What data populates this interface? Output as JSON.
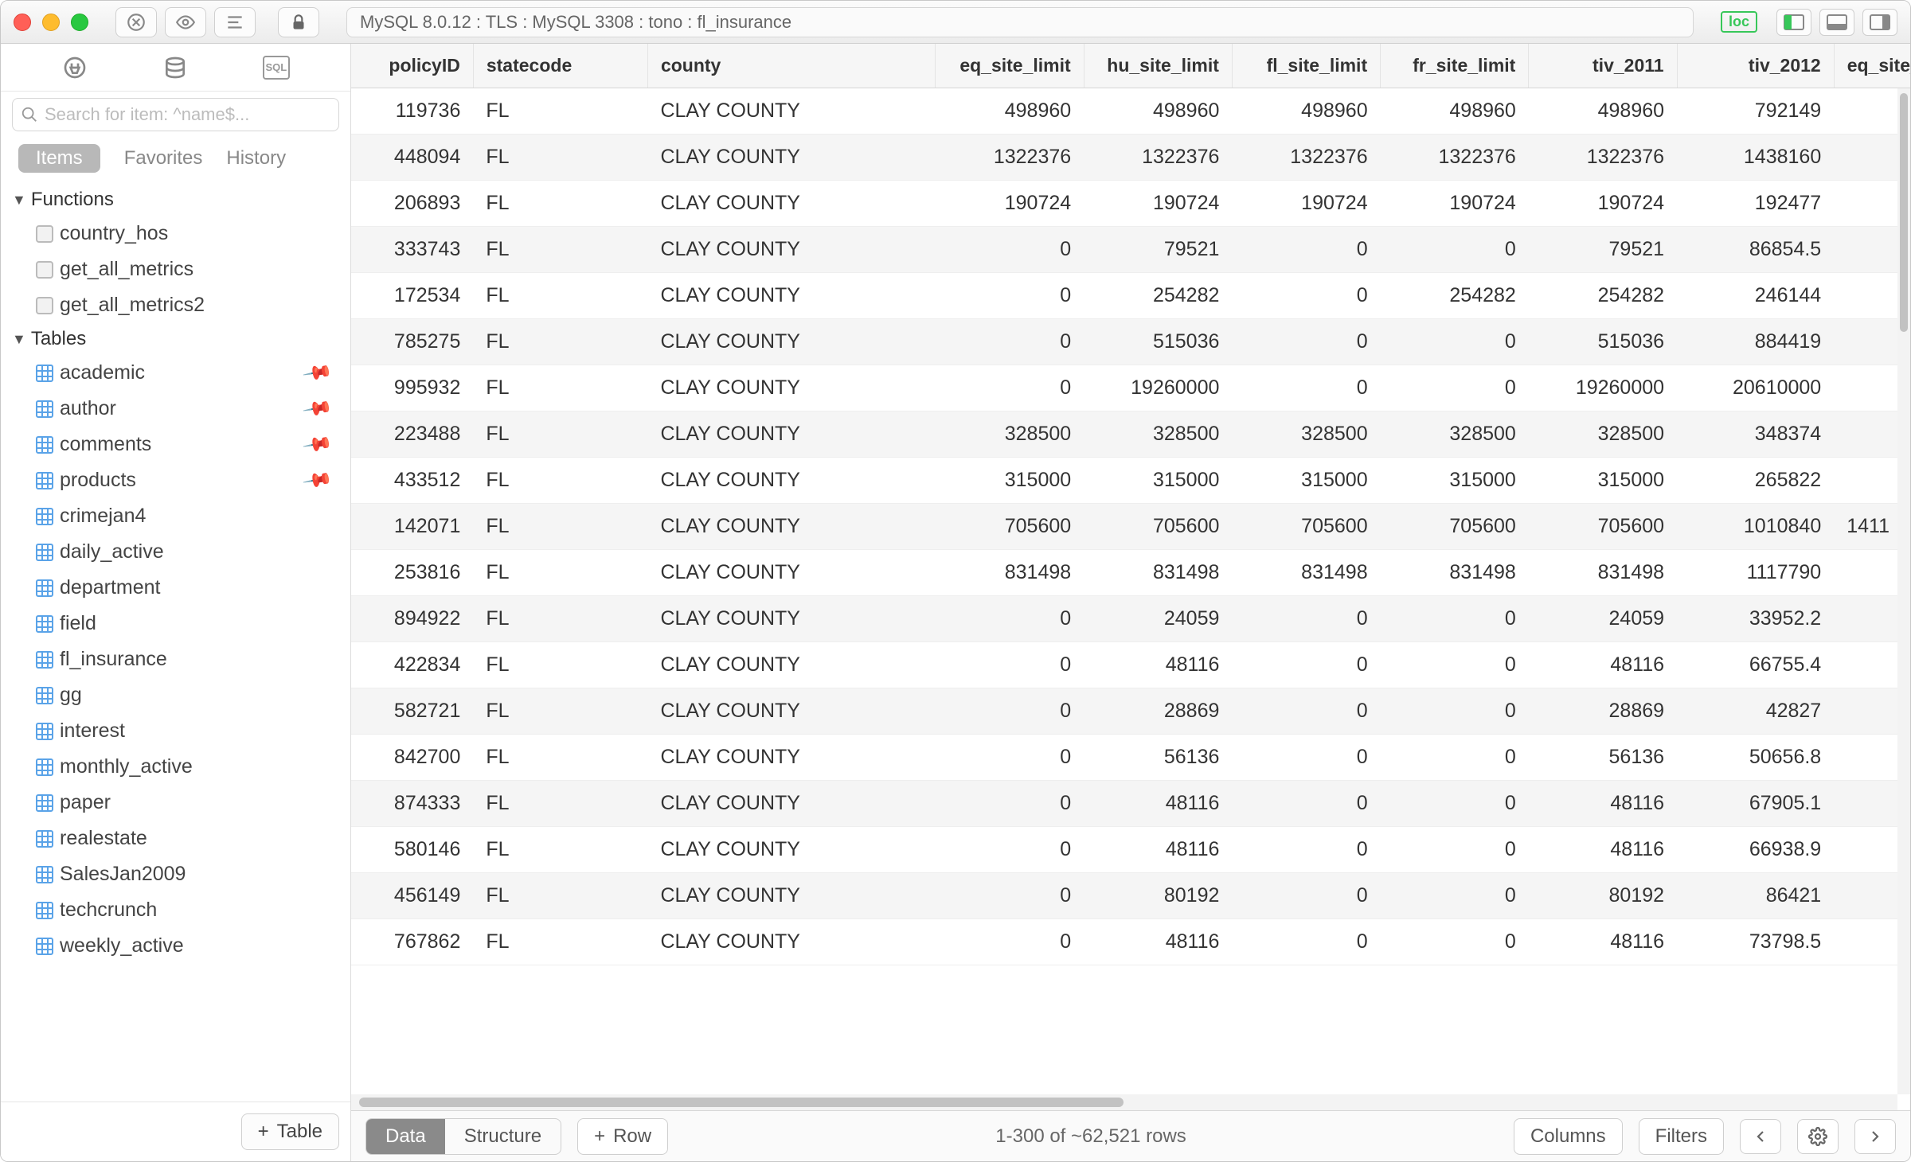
{
  "titlebar": {
    "connection": "MySQL 8.0.12 : TLS : MySQL 3308 : tono : fl_insurance",
    "loc_badge": "loc"
  },
  "sidebar": {
    "search_placeholder": "Search for item: ^name$...",
    "tabs": {
      "items": "Items",
      "favorites": "Favorites",
      "history": "History"
    },
    "sections": {
      "functions": {
        "label": "Functions",
        "items": [
          "country_hos",
          "get_all_metrics",
          "get_all_metrics2"
        ]
      },
      "tables": {
        "label": "Tables",
        "items": [
          {
            "name": "academic",
            "pinned": true
          },
          {
            "name": "author",
            "pinned": true
          },
          {
            "name": "comments",
            "pinned": true
          },
          {
            "name": "products",
            "pinned": true
          },
          {
            "name": "crimejan4",
            "pinned": false
          },
          {
            "name": "daily_active",
            "pinned": false
          },
          {
            "name": "department",
            "pinned": false
          },
          {
            "name": "field",
            "pinned": false
          },
          {
            "name": "fl_insurance",
            "pinned": false
          },
          {
            "name": "gg",
            "pinned": false
          },
          {
            "name": "interest",
            "pinned": false
          },
          {
            "name": "monthly_active",
            "pinned": false
          },
          {
            "name": "paper",
            "pinned": false
          },
          {
            "name": "realestate",
            "pinned": false
          },
          {
            "name": "SalesJan2009",
            "pinned": false
          },
          {
            "name": "techcrunch",
            "pinned": false
          },
          {
            "name": "weekly_active",
            "pinned": false
          }
        ]
      }
    },
    "add_table": "Table"
  },
  "grid": {
    "columns": [
      "policyID",
      "statecode",
      "county",
      "eq_site_limit",
      "hu_site_limit",
      "fl_site_limit",
      "fr_site_limit",
      "tiv_2011",
      "tiv_2012",
      "eq_site_deductible"
    ],
    "rows": [
      [
        "119736",
        "FL",
        "CLAY COUNTY",
        "498960",
        "498960",
        "498960",
        "498960",
        "498960",
        "792149",
        ""
      ],
      [
        "448094",
        "FL",
        "CLAY COUNTY",
        "1322376",
        "1322376",
        "1322376",
        "1322376",
        "1322376",
        "1438160",
        ""
      ],
      [
        "206893",
        "FL",
        "CLAY COUNTY",
        "190724",
        "190724",
        "190724",
        "190724",
        "190724",
        "192477",
        ""
      ],
      [
        "333743",
        "FL",
        "CLAY COUNTY",
        "0",
        "79521",
        "0",
        "0",
        "79521",
        "86854.5",
        ""
      ],
      [
        "172534",
        "FL",
        "CLAY COUNTY",
        "0",
        "254282",
        "0",
        "254282",
        "254282",
        "246144",
        ""
      ],
      [
        "785275",
        "FL",
        "CLAY COUNTY",
        "0",
        "515036",
        "0",
        "0",
        "515036",
        "884419",
        ""
      ],
      [
        "995932",
        "FL",
        "CLAY COUNTY",
        "0",
        "19260000",
        "0",
        "0",
        "19260000",
        "20610000",
        ""
      ],
      [
        "223488",
        "FL",
        "CLAY COUNTY",
        "328500",
        "328500",
        "328500",
        "328500",
        "328500",
        "348374",
        ""
      ],
      [
        "433512",
        "FL",
        "CLAY COUNTY",
        "315000",
        "315000",
        "315000",
        "315000",
        "315000",
        "265822",
        ""
      ],
      [
        "142071",
        "FL",
        "CLAY COUNTY",
        "705600",
        "705600",
        "705600",
        "705600",
        "705600",
        "1010840",
        "1411"
      ],
      [
        "253816",
        "FL",
        "CLAY COUNTY",
        "831498",
        "831498",
        "831498",
        "831498",
        "831498",
        "1117790",
        ""
      ],
      [
        "894922",
        "FL",
        "CLAY COUNTY",
        "0",
        "24059",
        "0",
        "0",
        "24059",
        "33952.2",
        ""
      ],
      [
        "422834",
        "FL",
        "CLAY COUNTY",
        "0",
        "48116",
        "0",
        "0",
        "48116",
        "66755.4",
        ""
      ],
      [
        "582721",
        "FL",
        "CLAY COUNTY",
        "0",
        "28869",
        "0",
        "0",
        "28869",
        "42827",
        ""
      ],
      [
        "842700",
        "FL",
        "CLAY COUNTY",
        "0",
        "56136",
        "0",
        "0",
        "56136",
        "50656.8",
        ""
      ],
      [
        "874333",
        "FL",
        "CLAY COUNTY",
        "0",
        "48116",
        "0",
        "0",
        "48116",
        "67905.1",
        ""
      ],
      [
        "580146",
        "FL",
        "CLAY COUNTY",
        "0",
        "48116",
        "0",
        "0",
        "48116",
        "66938.9",
        ""
      ],
      [
        "456149",
        "FL",
        "CLAY COUNTY",
        "0",
        "80192",
        "0",
        "0",
        "80192",
        "86421",
        ""
      ],
      [
        "767862",
        "FL",
        "CLAY COUNTY",
        "0",
        "48116",
        "0",
        "0",
        "48116",
        "73798.5",
        ""
      ]
    ]
  },
  "bottom": {
    "data": "Data",
    "structure": "Structure",
    "row": "Row",
    "status": "1-300 of ~62,521 rows",
    "columns": "Columns",
    "filters": "Filters"
  },
  "colors": {
    "accent_pin": "#ff7b3f",
    "row_alt": "#f5f5f5",
    "header_bg": "#f6f6f6",
    "border": "#d6d6d6"
  }
}
